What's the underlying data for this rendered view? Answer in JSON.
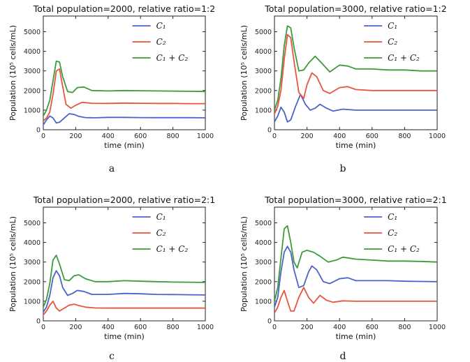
{
  "chart_data": [
    {
      "type": "line",
      "caption": "a",
      "title": "Total population=2000, relative ratio=1:2",
      "xlabel": "time (min)",
      "ylabel": "Population (10⁵ cells/mL)",
      "xlim": [
        0,
        1000
      ],
      "ylim": [
        0,
        5800
      ],
      "xticks": [
        "0",
        "200",
        "400",
        "600",
        "800",
        "1000"
      ],
      "yticks": [
        "0",
        "1000",
        "2000",
        "3000",
        "4000",
        "5000"
      ],
      "legend": "upper right",
      "series": [
        {
          "name": "C₁",
          "color": "#4a63c8",
          "x": [
            0,
            20,
            40,
            60,
            80,
            100,
            130,
            160,
            190,
            220,
            260,
            320,
            400,
            500,
            600,
            700,
            800,
            900,
            1000
          ],
          "y": [
            250,
            500,
            700,
            600,
            350,
            380,
            600,
            820,
            780,
            680,
            620,
            610,
            630,
            630,
            620,
            615,
            615,
            615,
            610
          ]
        },
        {
          "name": "C₂",
          "color": "#e8553f",
          "x": [
            0,
            20,
            40,
            60,
            80,
            100,
            120,
            140,
            170,
            200,
            240,
            300,
            400,
            500,
            600,
            700,
            800,
            900,
            1000
          ],
          "y": [
            450,
            600,
            900,
            1800,
            3000,
            3100,
            2200,
            1300,
            1100,
            1250,
            1400,
            1350,
            1340,
            1360,
            1350,
            1340,
            1340,
            1330,
            1330
          ]
        },
        {
          "name": "C₁ + C₂",
          "color": "#3d9a3d",
          "x": [
            0,
            20,
            40,
            60,
            80,
            100,
            120,
            150,
            180,
            210,
            250,
            300,
            400,
            500,
            600,
            700,
            800,
            900,
            1000
          ],
          "y": [
            700,
            1000,
            1500,
            2500,
            3500,
            3450,
            2700,
            1950,
            1900,
            2150,
            2180,
            2000,
            1980,
            2000,
            1990,
            1980,
            1970,
            1960,
            1950
          ]
        }
      ]
    },
    {
      "type": "line",
      "caption": "b",
      "title": "Total population=3000, relative ratio=1:2",
      "xlabel": "time (min)",
      "ylabel": "Population (10⁵ cells/mL)",
      "xlim": [
        0,
        1000
      ],
      "ylim": [
        0,
        5800
      ],
      "xticks": [
        "0",
        "200",
        "400",
        "600",
        "800",
        "1000"
      ],
      "yticks": [
        "0",
        "1000",
        "2000",
        "3000",
        "4000",
        "5000"
      ],
      "legend": "upper right",
      "series": [
        {
          "name": "C₁",
          "color": "#4a63c8",
          "x": [
            0,
            20,
            40,
            60,
            80,
            100,
            130,
            160,
            190,
            220,
            250,
            280,
            320,
            360,
            420,
            500,
            600,
            700,
            800,
            900,
            1000
          ],
          "y": [
            400,
            700,
            1150,
            900,
            400,
            500,
            1200,
            1800,
            1300,
            1000,
            1100,
            1300,
            1100,
            950,
            1050,
            1000,
            1000,
            1000,
            1000,
            1000,
            1000
          ]
        },
        {
          "name": "C₂",
          "color": "#e8553f",
          "x": [
            0,
            20,
            40,
            60,
            80,
            100,
            120,
            150,
            180,
            200,
            230,
            260,
            300,
            340,
            400,
            450,
            500,
            600,
            700,
            800,
            900,
            1000
          ],
          "y": [
            800,
            1200,
            2000,
            3600,
            4850,
            4700,
            3500,
            1900,
            1600,
            2300,
            2900,
            2700,
            2000,
            1850,
            2150,
            2200,
            2050,
            2000,
            2000,
            2000,
            2000,
            2000
          ]
        },
        {
          "name": "C₁ + C₂",
          "color": "#3d9a3d",
          "x": [
            0,
            20,
            40,
            60,
            80,
            100,
            120,
            150,
            180,
            210,
            250,
            290,
            340,
            400,
            450,
            500,
            600,
            700,
            800,
            900,
            1000
          ],
          "y": [
            1000,
            1500,
            2600,
            4300,
            5300,
            5200,
            4200,
            3000,
            3050,
            3400,
            3750,
            3400,
            2950,
            3300,
            3250,
            3100,
            3100,
            3050,
            3050,
            3000,
            3000
          ]
        }
      ]
    },
    {
      "type": "line",
      "caption": "c",
      "title": "Total population=2000, relative ratio=2:1",
      "xlabel": "time (min)",
      "ylabel": "Population (10⁵ cells/mL)",
      "xlim": [
        0,
        1000
      ],
      "ylim": [
        0,
        5800
      ],
      "xticks": [
        "0",
        "200",
        "400",
        "600",
        "800",
        "1000"
      ],
      "yticks": [
        "0",
        "1000",
        "2000",
        "3000",
        "4000",
        "5000"
      ],
      "legend": "upper right",
      "series": [
        {
          "name": "C₁",
          "color": "#4a63c8",
          "x": [
            0,
            20,
            40,
            60,
            80,
            100,
            120,
            150,
            180,
            210,
            250,
            300,
            400,
            500,
            600,
            700,
            800,
            900,
            1000
          ],
          "y": [
            450,
            700,
            1300,
            2200,
            2550,
            2300,
            1700,
            1300,
            1400,
            1550,
            1500,
            1350,
            1350,
            1400,
            1380,
            1350,
            1340,
            1330,
            1320
          ]
        },
        {
          "name": "C₂",
          "color": "#e8553f",
          "x": [
            0,
            20,
            40,
            60,
            80,
            100,
            130,
            160,
            190,
            220,
            260,
            320,
            400,
            500,
            600,
            700,
            800,
            900,
            1000
          ],
          "y": [
            300,
            500,
            800,
            1000,
            650,
            500,
            650,
            800,
            850,
            780,
            700,
            660,
            650,
            650,
            650,
            650,
            650,
            650,
            650
          ]
        },
        {
          "name": "C₁ + C₂",
          "color": "#3d9a3d",
          "x": [
            0,
            20,
            40,
            60,
            80,
            100,
            130,
            160,
            190,
            220,
            260,
            320,
            400,
            500,
            600,
            700,
            800,
            900,
            1000
          ],
          "y": [
            700,
            1100,
            1900,
            3100,
            3350,
            2900,
            2100,
            2050,
            2300,
            2350,
            2150,
            2000,
            2000,
            2050,
            2020,
            2000,
            1980,
            1970,
            1960
          ]
        }
      ]
    },
    {
      "type": "line",
      "caption": "d",
      "title": "Total population=3000, relative ratio=2:1",
      "xlabel": "time (min)",
      "ylabel": "Population (10⁵ cells/mL)",
      "xlim": [
        0,
        1000
      ],
      "ylim": [
        0,
        5800
      ],
      "xticks": [
        "0",
        "200",
        "400",
        "600",
        "800",
        "1000"
      ],
      "yticks": [
        "0",
        "1000",
        "2000",
        "3000",
        "4000",
        "5000"
      ],
      "legend": "upper right",
      "series": [
        {
          "name": "C₁",
          "color": "#4a63c8",
          "x": [
            0,
            20,
            40,
            60,
            80,
            100,
            120,
            150,
            180,
            210,
            230,
            260,
            300,
            340,
            400,
            450,
            500,
            600,
            700,
            800,
            900,
            1000
          ],
          "y": [
            700,
            1200,
            2500,
            3500,
            3800,
            3500,
            2600,
            1700,
            1800,
            2500,
            2800,
            2600,
            2000,
            1900,
            2150,
            2200,
            2050,
            2050,
            2050,
            2020,
            2010,
            2000
          ]
        },
        {
          "name": "C₂",
          "color": "#e8553f",
          "x": [
            0,
            20,
            40,
            60,
            80,
            100,
            120,
            150,
            180,
            210,
            240,
            280,
            320,
            360,
            420,
            500,
            600,
            700,
            800,
            900,
            1000
          ],
          "y": [
            400,
            700,
            1200,
            1550,
            1000,
            500,
            500,
            1200,
            1700,
            1200,
            900,
            1300,
            1050,
            950,
            1020,
            1000,
            1000,
            1000,
            1000,
            1000,
            1000
          ]
        },
        {
          "name": "C₁ + C₂",
          "color": "#3d9a3d",
          "x": [
            0,
            20,
            40,
            60,
            80,
            100,
            120,
            140,
            170,
            200,
            240,
            280,
            330,
            380,
            420,
            500,
            600,
            700,
            800,
            900,
            1000
          ],
          "y": [
            1000,
            1700,
            3200,
            4700,
            4850,
            4000,
            3000,
            2700,
            3500,
            3600,
            3500,
            3300,
            3000,
            3100,
            3250,
            3150,
            3100,
            3050,
            3050,
            3030,
            3000
          ]
        }
      ]
    }
  ]
}
